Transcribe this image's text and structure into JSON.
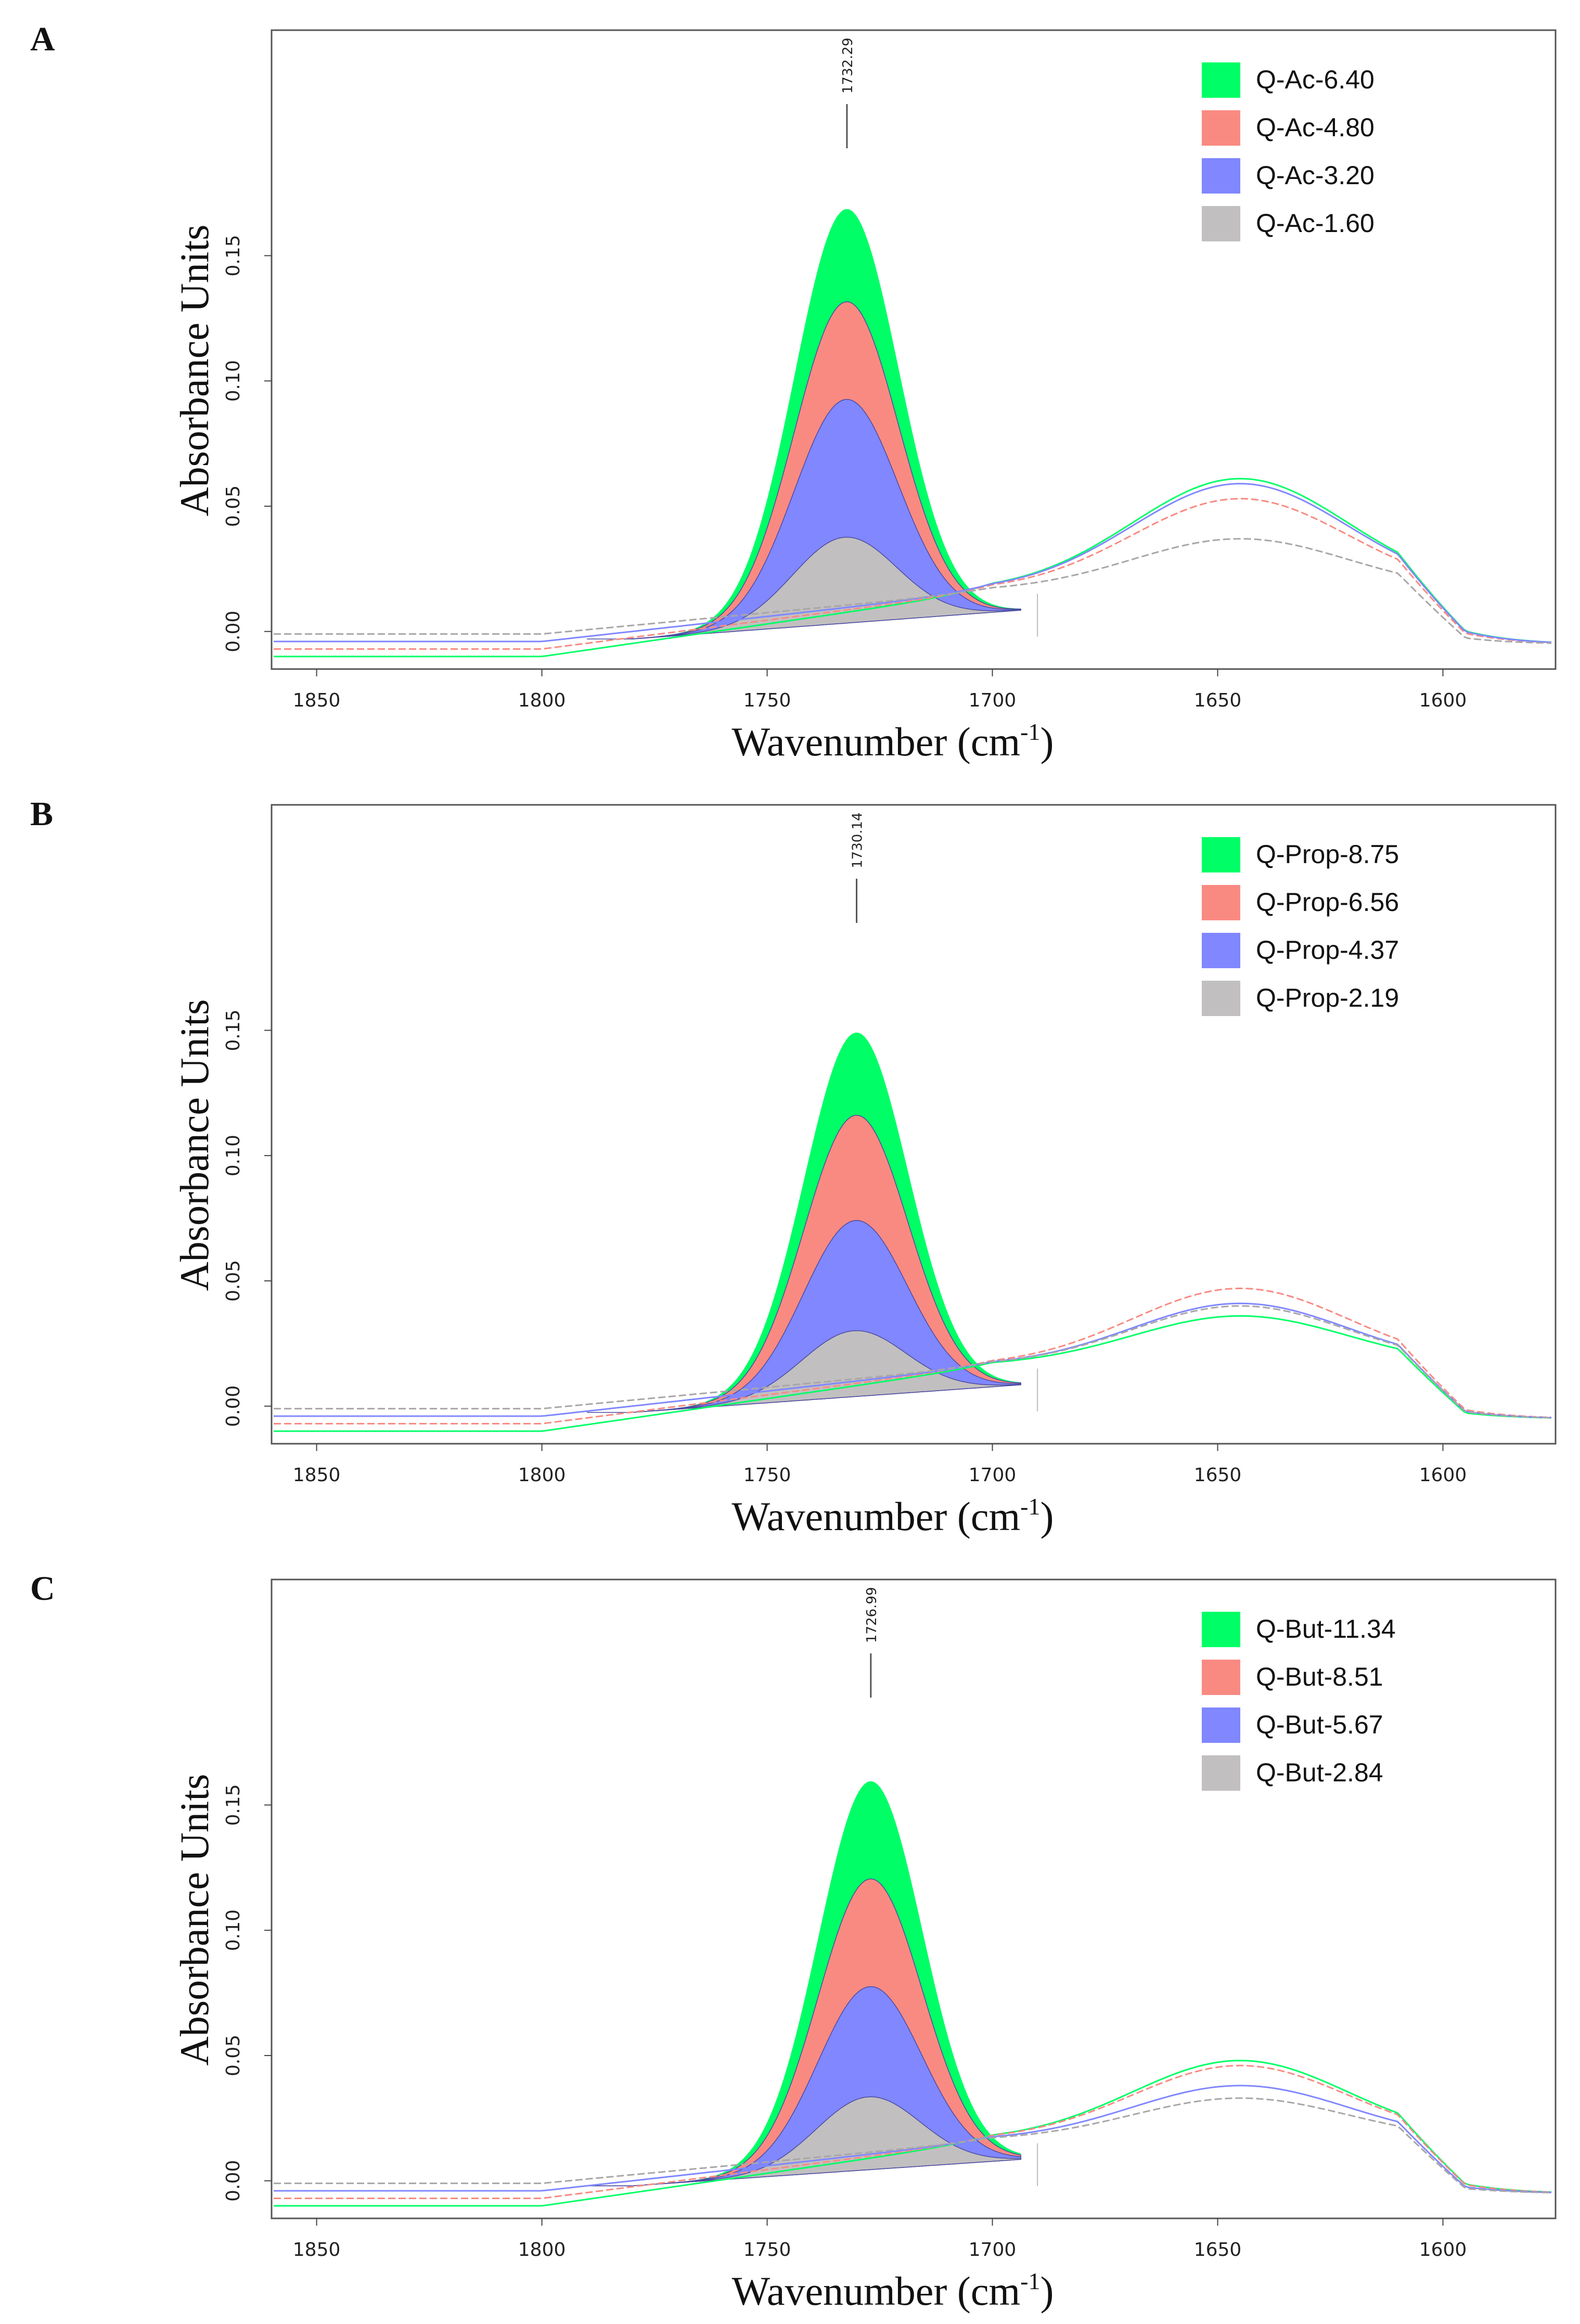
{
  "chart_data": [
    {
      "panel": "A",
      "type": "area",
      "xlabel": "Wavenumber (cm",
      "xlabel_sup": "-1",
      "xlabel_close": ")",
      "ylabel": "Absorbance Units",
      "xlim": [
        1860,
        1575
      ],
      "ylim": [
        -0.015,
        0.24
      ],
      "xticks": [
        1850,
        1800,
        1750,
        1700,
        1650,
        1600
      ],
      "yticks": [
        "0.00",
        "0.05",
        "0.10",
        "0.15"
      ],
      "peak_label": "1732.29",
      "peak_x": 1732.29,
      "series": [
        {
          "name": "Q-Ac-6.40",
          "color": "#00ff66",
          "peak": 0.172,
          "shoulder": 0.045
        },
        {
          "name": "Q-Ac-4.80",
          "color": "#f98a82",
          "peak": 0.135,
          "shoulder": 0.037
        },
        {
          "name": "Q-Ac-3.20",
          "color": "#8087ff",
          "peak": 0.096,
          "shoulder": 0.043
        },
        {
          "name": "Q-Ac-1.60",
          "color": "#c2bfc0",
          "peak": 0.041,
          "shoulder": 0.021
        }
      ]
    },
    {
      "panel": "B",
      "type": "area",
      "xlabel": "Wavenumber (cm",
      "xlabel_sup": "-1",
      "xlabel_close": ")",
      "ylabel": "Absorbance Units",
      "xlim": [
        1860,
        1575
      ],
      "ylim": [
        -0.015,
        0.24
      ],
      "xticks": [
        1850,
        1800,
        1750,
        1700,
        1650,
        1600
      ],
      "yticks": [
        "0.00",
        "0.05",
        "0.10",
        "0.15"
      ],
      "peak_label": "1730.14",
      "peak_x": 1730.14,
      "series": [
        {
          "name": "Q-Prop-8.75",
          "color": "#00ff66",
          "peak": 0.153,
          "shoulder": 0.02
        },
        {
          "name": "Q-Prop-6.56",
          "color": "#f98a82",
          "peak": 0.12,
          "shoulder": 0.031
        },
        {
          "name": "Q-Prop-4.37",
          "color": "#8087ff",
          "peak": 0.078,
          "shoulder": 0.025
        },
        {
          "name": "Q-Prop-2.19",
          "color": "#c2bfc0",
          "peak": 0.034,
          "shoulder": 0.024
        }
      ]
    },
    {
      "panel": "C",
      "type": "area",
      "xlabel": "Wavenumber (cm",
      "xlabel_sup": "-1",
      "xlabel_close": ")",
      "ylabel": "Absorbance Units",
      "xlim": [
        1860,
        1575
      ],
      "ylim": [
        -0.015,
        0.24
      ],
      "xticks": [
        1850,
        1800,
        1750,
        1700,
        1650,
        1600
      ],
      "yticks": [
        "0.00",
        "0.05",
        "0.10",
        "0.15"
      ],
      "peak_label": "1726.99",
      "peak_x": 1726.99,
      "series": [
        {
          "name": "Q-But-11.34",
          "color": "#00ff66",
          "peak": 0.164,
          "shoulder": 0.032
        },
        {
          "name": "Q-But-8.51",
          "color": "#f98a82",
          "peak": 0.125,
          "shoulder": 0.03
        },
        {
          "name": "Q-But-5.67",
          "color": "#8087ff",
          "peak": 0.082,
          "shoulder": 0.022
        },
        {
          "name": "Q-But-2.84",
          "color": "#c2bfc0",
          "peak": 0.038,
          "shoulder": 0.017
        }
      ]
    }
  ]
}
